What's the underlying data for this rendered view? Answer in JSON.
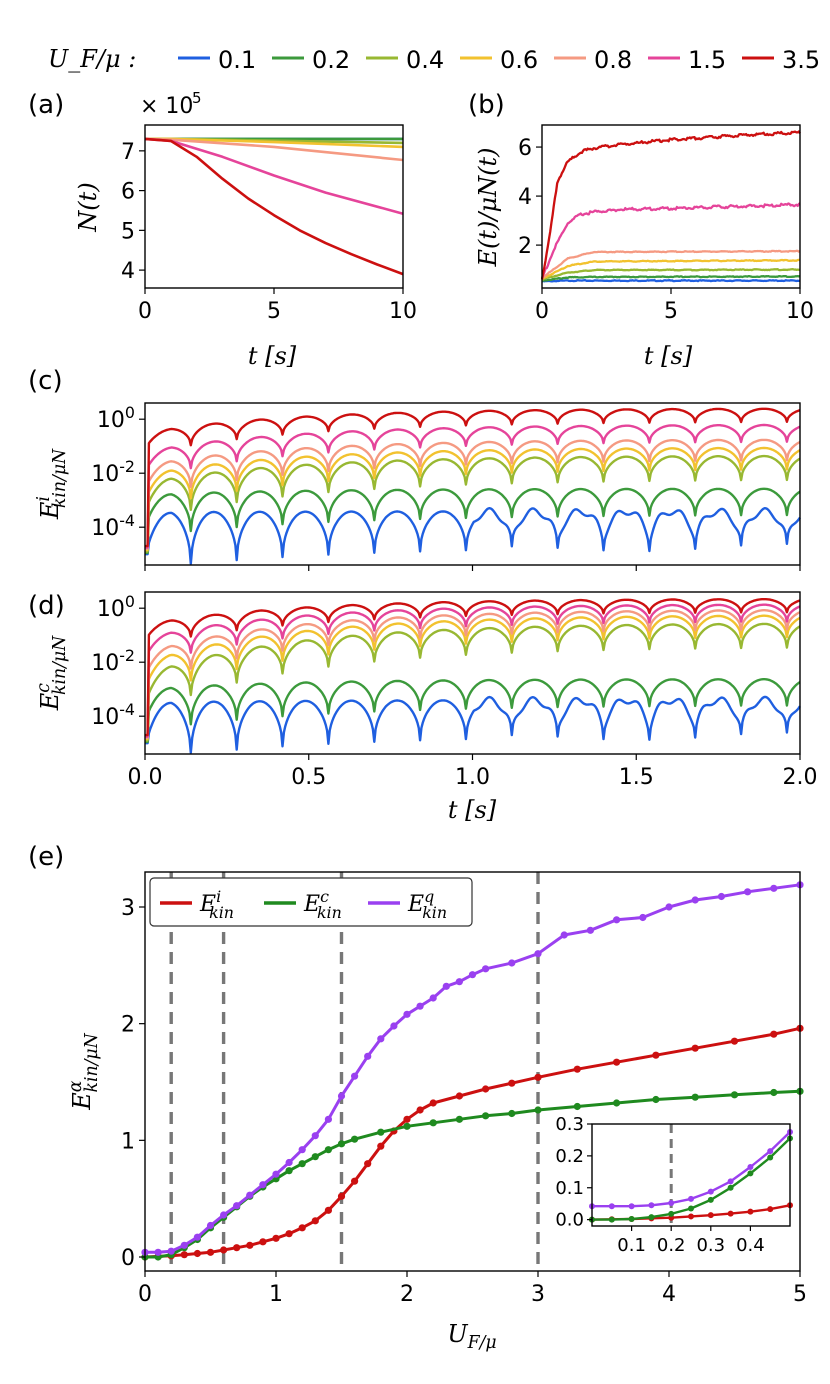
{
  "legend": {
    "prefix": "U_F/μ :",
    "items": [
      {
        "label": "0.1",
        "color": "#1f5fe0"
      },
      {
        "label": "0.2",
        "color": "#3c9a3c"
      },
      {
        "label": "0.4",
        "color": "#98b832"
      },
      {
        "label": "0.6",
        "color": "#f2c22f"
      },
      {
        "label": "0.8",
        "color": "#f59a82"
      },
      {
        "label": "1.5",
        "color": "#e5449a"
      },
      {
        "label": "3.5",
        "color": "#cc1010"
      }
    ]
  },
  "chart_data": [
    {
      "id": "a",
      "panel_label": "(a)",
      "type": "line",
      "xlabel": "t [s]",
      "ylabel": "N(t)",
      "y_multiplier": "× 10^5",
      "xlim": [
        0,
        10
      ],
      "ylim": [
        3.55,
        7.65
      ],
      "xticks": [
        0,
        5,
        10
      ],
      "yticks": [
        4,
        5,
        6,
        7
      ],
      "series": [
        {
          "name": "0.1",
          "x": [
            0,
            1,
            10
          ],
          "y": [
            7.3,
            7.3,
            7.3
          ]
        },
        {
          "name": "0.2",
          "x": [
            0,
            1,
            10
          ],
          "y": [
            7.3,
            7.3,
            7.3
          ]
        },
        {
          "name": "0.4",
          "x": [
            0,
            1,
            10
          ],
          "y": [
            7.3,
            7.3,
            7.2
          ]
        },
        {
          "name": "0.6",
          "x": [
            0,
            1,
            5,
            10
          ],
          "y": [
            7.3,
            7.3,
            7.22,
            7.1
          ]
        },
        {
          "name": "0.8",
          "x": [
            0,
            1,
            5,
            10
          ],
          "y": [
            7.3,
            7.28,
            7.1,
            6.77
          ]
        },
        {
          "name": "1.5",
          "x": [
            0,
            1,
            3,
            5,
            7,
            10
          ],
          "y": [
            7.3,
            7.25,
            6.85,
            6.38,
            5.95,
            5.42
          ]
        },
        {
          "name": "3.5",
          "x": [
            0,
            1,
            2,
            3,
            4,
            5,
            6,
            7,
            8,
            9,
            10
          ],
          "y": [
            7.3,
            7.25,
            6.85,
            6.3,
            5.8,
            5.38,
            5.0,
            4.68,
            4.4,
            4.14,
            3.9
          ]
        }
      ]
    },
    {
      "id": "b",
      "panel_label": "(b)",
      "type": "line",
      "xlabel": "t [s]",
      "ylabel": "E(t)/μN(t)",
      "xlim": [
        0,
        10
      ],
      "ylim": [
        0.25,
        6.9
      ],
      "xticks": [
        0,
        5,
        10
      ],
      "yticks": [
        2,
        4,
        6
      ],
      "series": [
        {
          "name": "0.1",
          "x": [
            0,
            1,
            10
          ],
          "y": [
            0.52,
            0.55,
            0.55
          ]
        },
        {
          "name": "0.2",
          "x": [
            0,
            1,
            2,
            10
          ],
          "y": [
            0.55,
            0.68,
            0.7,
            0.72
          ]
        },
        {
          "name": "0.4",
          "x": [
            0,
            1,
            2,
            10
          ],
          "y": [
            0.6,
            0.88,
            0.98,
            1.0
          ]
        },
        {
          "name": "0.6",
          "x": [
            0,
            1,
            2,
            10
          ],
          "y": [
            0.62,
            1.15,
            1.33,
            1.38
          ]
        },
        {
          "name": "0.8",
          "x": [
            0,
            1,
            2,
            10
          ],
          "y": [
            0.65,
            1.45,
            1.72,
            1.75
          ]
        },
        {
          "name": "1.5",
          "x": [
            0,
            0.5,
            1,
            1.5,
            2,
            3,
            5,
            10
          ],
          "y": [
            0.65,
            1.9,
            2.9,
            3.25,
            3.35,
            3.45,
            3.5,
            3.65
          ]
        },
        {
          "name": "3.5",
          "x": [
            0,
            0.3,
            0.6,
            1,
            1.5,
            2,
            3,
            5,
            8,
            10
          ],
          "y": [
            0.6,
            2.4,
            4.6,
            5.4,
            5.8,
            5.95,
            6.1,
            6.3,
            6.5,
            6.6
          ]
        }
      ]
    },
    {
      "id": "c",
      "panel_label": "(c)",
      "type": "line",
      "yscale": "log",
      "xlabel": "",
      "ylabel": "E^i_kin/μN",
      "xlim": [
        0,
        2
      ],
      "ylim_log10": [
        -5.4,
        0.6
      ],
      "xticks": [
        0,
        0.5,
        1,
        1.5,
        2
      ],
      "yticks_log10": [
        -4,
        -2,
        0
      ],
      "ytick_labels": [
        "10^-4",
        "10^-2",
        "10^0"
      ],
      "series": [
        {
          "name": "0.1",
          "offset_log10": -4.25,
          "amp": 0.8,
          "dip": 1.4,
          "plateau_log10": -4.1
        },
        {
          "name": "0.2",
          "offset_log10": -3.4,
          "amp": 0.6,
          "dip": 1.0,
          "plateau_log10": -2.5
        },
        {
          "name": "0.4",
          "offset_log10": -2.9,
          "amp": 0.55,
          "dip": 0.9,
          "plateau_log10": -1.9
        },
        {
          "name": "0.6",
          "offset_log10": -2.55,
          "amp": 0.5,
          "dip": 0.8,
          "plateau_log10": -1.55
        },
        {
          "name": "0.8",
          "offset_log10": -2.2,
          "amp": 0.5,
          "dip": 0.7,
          "plateau_log10": -1.25
        },
        {
          "name": "1.5",
          "offset_log10": -1.6,
          "amp": 0.4,
          "dip": 0.6,
          "plateau_log10": -0.6
        },
        {
          "name": "3.5",
          "offset_log10": -0.8,
          "amp": 0.3,
          "dip": 0.5,
          "plateau_log10": 0.1
        }
      ]
    },
    {
      "id": "d",
      "panel_label": "(d)",
      "type": "line",
      "yscale": "log",
      "xlabel": "t [s]",
      "ylabel": "E^c_kin/μN",
      "xlim": [
        0,
        2
      ],
      "ylim_log10": [
        -5.4,
        0.6
      ],
      "xticks": [
        0,
        0.5,
        1,
        1.5,
        2
      ],
      "xtick_labels": [
        "0.0",
        "0.5",
        "1.0",
        "1.5",
        "2.0"
      ],
      "yticks_log10": [
        -4,
        -2,
        0
      ],
      "ytick_labels": [
        "10^-4",
        "10^-2",
        "10^0"
      ],
      "series": [
        {
          "name": "0.1",
          "offset_log10": -4.3,
          "amp": 0.8,
          "dip": 1.4,
          "plateau_log10": -3.9
        },
        {
          "name": "0.2",
          "offset_log10": -3.6,
          "amp": 0.6,
          "dip": 1.0,
          "plateau_log10": -2.1
        },
        {
          "name": "0.4",
          "offset_log10": -3.0,
          "amp": 0.55,
          "dip": 0.9,
          "plateau_log10": -1.1
        },
        {
          "name": "0.6",
          "offset_log10": -2.5,
          "amp": 0.5,
          "dip": 0.8,
          "plateau_log10": -0.75
        },
        {
          "name": "0.8",
          "offset_log10": -2.1,
          "amp": 0.45,
          "dip": 0.7,
          "plateau_log10": -0.5
        },
        {
          "name": "1.5",
          "offset_log10": -1.5,
          "amp": 0.4,
          "dip": 0.6,
          "plateau_log10": -0.25
        },
        {
          "name": "3.5",
          "offset_log10": -0.9,
          "amp": 0.3,
          "dip": 0.5,
          "plateau_log10": 0.05
        }
      ]
    },
    {
      "id": "e",
      "panel_label": "(e)",
      "type": "line",
      "xlabel": "U_F/μ",
      "ylabel": "E^α_kin/μN",
      "xlim": [
        0,
        5
      ],
      "ylim": [
        -0.12,
        3.3
      ],
      "xticks": [
        0,
        1,
        2,
        3,
        4,
        5
      ],
      "yticks": [
        0,
        1,
        2,
        3
      ],
      "vlines": [
        0.2,
        0.6,
        1.5,
        3.0
      ],
      "legend": [
        {
          "label": "E^i_kin",
          "color": "#cc1010"
        },
        {
          "label": "E^c_kin",
          "color": "#1f8a1f"
        },
        {
          "label": "E^q_kin",
          "color": "#9a40f0"
        }
      ],
      "series": [
        {
          "name": "E^i_kin",
          "color": "#cc1010",
          "x": [
            0,
            0.1,
            0.2,
            0.3,
            0.4,
            0.5,
            0.6,
            0.7,
            0.8,
            0.9,
            1.0,
            1.1,
            1.2,
            1.3,
            1.4,
            1.5,
            1.6,
            1.7,
            1.8,
            1.9,
            2.0,
            2.1,
            2.2,
            2.4,
            2.6,
            2.8,
            3.0,
            3.3,
            3.6,
            3.9,
            4.2,
            4.5,
            4.8,
            5.0
          ],
          "y": [
            0,
            0.005,
            0.01,
            0.02,
            0.03,
            0.04,
            0.06,
            0.08,
            0.1,
            0.13,
            0.16,
            0.2,
            0.25,
            0.31,
            0.4,
            0.52,
            0.65,
            0.8,
            0.95,
            1.08,
            1.18,
            1.26,
            1.32,
            1.38,
            1.44,
            1.49,
            1.54,
            1.61,
            1.67,
            1.73,
            1.79,
            1.85,
            1.91,
            1.96
          ]
        },
        {
          "name": "E^c_kin",
          "color": "#1f8a1f",
          "x": [
            0,
            0.1,
            0.2,
            0.3,
            0.4,
            0.5,
            0.6,
            0.7,
            0.8,
            0.9,
            1.0,
            1.1,
            1.2,
            1.3,
            1.4,
            1.5,
            1.6,
            1.8,
            2.0,
            2.2,
            2.4,
            2.6,
            2.8,
            3.0,
            3.3,
            3.6,
            3.9,
            4.2,
            4.5,
            4.8,
            5.0
          ],
          "y": [
            0,
            0.0,
            0.02,
            0.08,
            0.15,
            0.25,
            0.34,
            0.43,
            0.52,
            0.6,
            0.67,
            0.74,
            0.8,
            0.86,
            0.92,
            0.97,
            1.01,
            1.07,
            1.12,
            1.15,
            1.18,
            1.21,
            1.23,
            1.26,
            1.29,
            1.32,
            1.35,
            1.37,
            1.39,
            1.41,
            1.42
          ]
        },
        {
          "name": "E^q_kin",
          "color": "#9a40f0",
          "x": [
            0,
            0.1,
            0.2,
            0.3,
            0.4,
            0.5,
            0.6,
            0.7,
            0.8,
            0.9,
            1.0,
            1.1,
            1.2,
            1.3,
            1.4,
            1.5,
            1.6,
            1.7,
            1.8,
            1.9,
            2.0,
            2.1,
            2.2,
            2.3,
            2.4,
            2.5,
            2.6,
            2.8,
            3.0,
            3.2,
            3.4,
            3.6,
            3.8,
            4.0,
            4.2,
            4.4,
            4.6,
            4.8,
            5.0
          ],
          "y": [
            0.04,
            0.04,
            0.05,
            0.1,
            0.17,
            0.27,
            0.36,
            0.44,
            0.53,
            0.62,
            0.71,
            0.81,
            0.92,
            1.04,
            1.18,
            1.38,
            1.55,
            1.72,
            1.87,
            1.98,
            2.08,
            2.15,
            2.22,
            2.32,
            2.36,
            2.42,
            2.47,
            2.52,
            2.6,
            2.76,
            2.8,
            2.89,
            2.91,
            3.0,
            3.06,
            3.09,
            3.13,
            3.16,
            3.19
          ]
        }
      ],
      "inset": {
        "xlim": [
          0,
          0.5
        ],
        "ylim": [
          -0.02,
          0.3
        ],
        "xticks": [
          0.1,
          0.2,
          0.3,
          0.4
        ],
        "xtick_labels": [
          "0.1",
          "0.2",
          "0.3",
          "0.4"
        ],
        "yticks": [
          0,
          0.1,
          0.2,
          0.3
        ],
        "ytick_labels": [
          "0.0",
          "0.1",
          "0.2",
          "0.3"
        ],
        "vline": 0.2,
        "series": [
          {
            "name": "E^i_kin",
            "color": "#cc1010",
            "x": [
              0,
              0.05,
              0.1,
              0.15,
              0.2,
              0.25,
              0.3,
              0.35,
              0.4,
              0.45,
              0.5
            ],
            "y": [
              0.0,
              0.001,
              0.002,
              0.004,
              0.006,
              0.01,
              0.014,
              0.019,
              0.025,
              0.033,
              0.045
            ]
          },
          {
            "name": "E^c_kin",
            "color": "#1f8a1f",
            "x": [
              0,
              0.05,
              0.1,
              0.15,
              0.2,
              0.25,
              0.3,
              0.35,
              0.4,
              0.45,
              0.5
            ],
            "y": [
              0.0,
              0.0,
              0.002,
              0.008,
              0.018,
              0.035,
              0.062,
              0.1,
              0.145,
              0.195,
              0.255
            ]
          },
          {
            "name": "E^q_kin",
            "color": "#9a40f0",
            "x": [
              0,
              0.05,
              0.1,
              0.15,
              0.2,
              0.25,
              0.3,
              0.35,
              0.4,
              0.45,
              0.5
            ],
            "y": [
              0.042,
              0.042,
              0.042,
              0.045,
              0.052,
              0.065,
              0.088,
              0.12,
              0.165,
              0.215,
              0.275
            ]
          }
        ]
      }
    }
  ]
}
